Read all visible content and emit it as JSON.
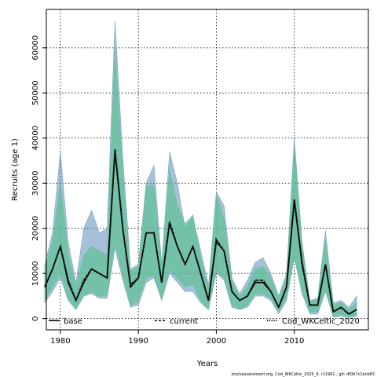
{
  "chart_data": {
    "type": "area",
    "xlabel": "Years",
    "ylabel": "Recruits (age 1)",
    "xlim": [
      1978.2,
      2019.5
    ],
    "ylim": [
      -2500,
      68500
    ],
    "xticks": [
      1980,
      1990,
      2000,
      2010
    ],
    "xtick_labels": [
      "1980",
      "1990",
      "2000",
      "2010"
    ],
    "yticks": [
      0,
      10000,
      20000,
      30000,
      40000,
      50000,
      60000
    ],
    "ytick_labels": [
      "0",
      "10000",
      "20000",
      "30000",
      "40000",
      "50000",
      "60000"
    ],
    "grid": true,
    "legend_position": "bottom",
    "footnote": "stockassessment.org, Cod_WKCeltic_2020_4, r11961 , git: df0b7c1bcb83",
    "x": [
      1978,
      1979,
      1980,
      1981,
      1982,
      1983,
      1984,
      1985,
      1986,
      1987,
      1988,
      1989,
      1990,
      1991,
      1992,
      1993,
      1994,
      1995,
      1996,
      1997,
      1998,
      1999,
      2000,
      2001,
      2002,
      2003,
      2004,
      2005,
      2006,
      2007,
      2008,
      2009,
      2010,
      2011,
      2012,
      2013,
      2014,
      2015,
      2016,
      2017,
      2018
    ],
    "series": [
      {
        "name": "base",
        "color": "#000000",
        "line_style": "solid",
        "band_color": "#5b8db8",
        "values": [
          7000,
          11000,
          16000,
          8000,
          4000,
          8000,
          11000,
          10000,
          9000,
          37000,
          20000,
          7000,
          9000,
          19000,
          19000,
          8000,
          21000,
          16000,
          12000,
          16000,
          10000,
          4000,
          17000,
          15000,
          6000,
          4000,
          5000,
          8000,
          8000,
          6000,
          2500,
          7000,
          26000,
          12000,
          3000,
          3000,
          12000,
          1500,
          2500,
          1000,
          2000
        ],
        "lower": [
          3500,
          6000,
          9000,
          4000,
          2000,
          5000,
          5500,
          4500,
          4500,
          15500,
          8500,
          2500,
          3000,
          8000,
          9000,
          4000,
          10000,
          8000,
          6000,
          6000,
          3500,
          2000,
          10000,
          8500,
          2500,
          2000,
          2500,
          5000,
          5000,
          4000,
          1000,
          4000,
          13500,
          5500,
          1000,
          1000,
          6000,
          300,
          500,
          200,
          500
        ],
        "upper": [
          12000,
          19000,
          37000,
          17000,
          8000,
          20000,
          24000,
          19000,
          20000,
          66000,
          36000,
          11000,
          12000,
          30000,
          34000,
          12000,
          37000,
          30000,
          20000,
          22500,
          15000,
          7500,
          28000,
          25000,
          9000,
          5500,
          8500,
          12500,
          13500,
          10000,
          5000,
          10000,
          40000,
          17000,
          4000,
          4500,
          19500,
          3500,
          4000,
          2500,
          5000
        ]
      },
      {
        "name": "current",
        "color": "#000000",
        "line_style": "dashed",
        "band_color": "#5ab4ac",
        "values": [
          7000,
          11000,
          16000,
          8500,
          4000,
          8500,
          11000,
          10000,
          9000,
          37500,
          20000,
          7500,
          9000,
          19000,
          19000,
          8000,
          21500,
          16000,
          12000,
          16000,
          10000,
          4000,
          17500,
          15000,
          6000,
          4000,
          5000,
          8500,
          8500,
          6000,
          2500,
          7000,
          26500,
          12500,
          3000,
          3000,
          12000,
          1500,
          2500,
          1000,
          2000
        ],
        "lower": [
          4000,
          7000,
          10000,
          4500,
          2000,
          5000,
          6000,
          5000,
          5000,
          17000,
          9500,
          3000,
          4000,
          9000,
          9500,
          4500,
          11000,
          9000,
          7000,
          7500,
          4000,
          2000,
          10500,
          9000,
          3000,
          2000,
          3000,
          5500,
          5500,
          4500,
          1500,
          4500,
          14000,
          6000,
          1500,
          1500,
          6500,
          500,
          1000,
          400,
          800
        ],
        "upper": [
          11000,
          17000,
          30000,
          14000,
          7000,
          14000,
          16000,
          15000,
          14000,
          60000,
          32000,
          10500,
          11500,
          29500,
          29500,
          11500,
          33000,
          25000,
          21000,
          23000,
          13500,
          6500,
          27500,
          22000,
          8000,
          5000,
          7000,
          11000,
          11500,
          9000,
          4500,
          9000,
          38000,
          16500,
          3500,
          4500,
          17500,
          3000,
          3500,
          2000,
          3500
        ]
      },
      {
        "name": "Cod_WKCeltic_2020",
        "color": "#1a1a1a",
        "line_style": "dotted",
        "band_color": "#6ac78f",
        "values": [
          7000,
          11000,
          16000,
          8500,
          4000,
          8500,
          11000,
          10000,
          9000,
          37500,
          20000,
          7500,
          9000,
          19000,
          19000,
          8000,
          21500,
          16000,
          12000,
          16000,
          10000,
          4000,
          17500,
          15000,
          6000,
          4000,
          5000,
          8500,
          8500,
          6000,
          2500,
          7000,
          26500,
          12500,
          3000,
          3000,
          12000,
          1500,
          2500,
          1000,
          2000
        ],
        "lower": [
          4000,
          7000,
          10000,
          4500,
          2000,
          5000,
          6000,
          5000,
          5000,
          17000,
          9500,
          3000,
          4000,
          9000,
          9500,
          4500,
          11000,
          9000,
          7000,
          7500,
          4000,
          2000,
          10500,
          9000,
          3000,
          2000,
          3000,
          5500,
          5500,
          4500,
          1500,
          4500,
          14000,
          6000,
          1500,
          1500,
          6500,
          500,
          1000,
          400,
          800
        ],
        "upper": [
          11000,
          17000,
          30000,
          14000,
          7000,
          14000,
          16000,
          15000,
          14000,
          60000,
          32000,
          10500,
          11500,
          29500,
          29500,
          11500,
          33000,
          25000,
          21000,
          23000,
          13500,
          6500,
          27500,
          22000,
          8000,
          5000,
          7000,
          11000,
          11500,
          9000,
          4500,
          9000,
          38000,
          16500,
          3500,
          4500,
          17500,
          3000,
          3500,
          2000,
          3500
        ]
      }
    ]
  }
}
